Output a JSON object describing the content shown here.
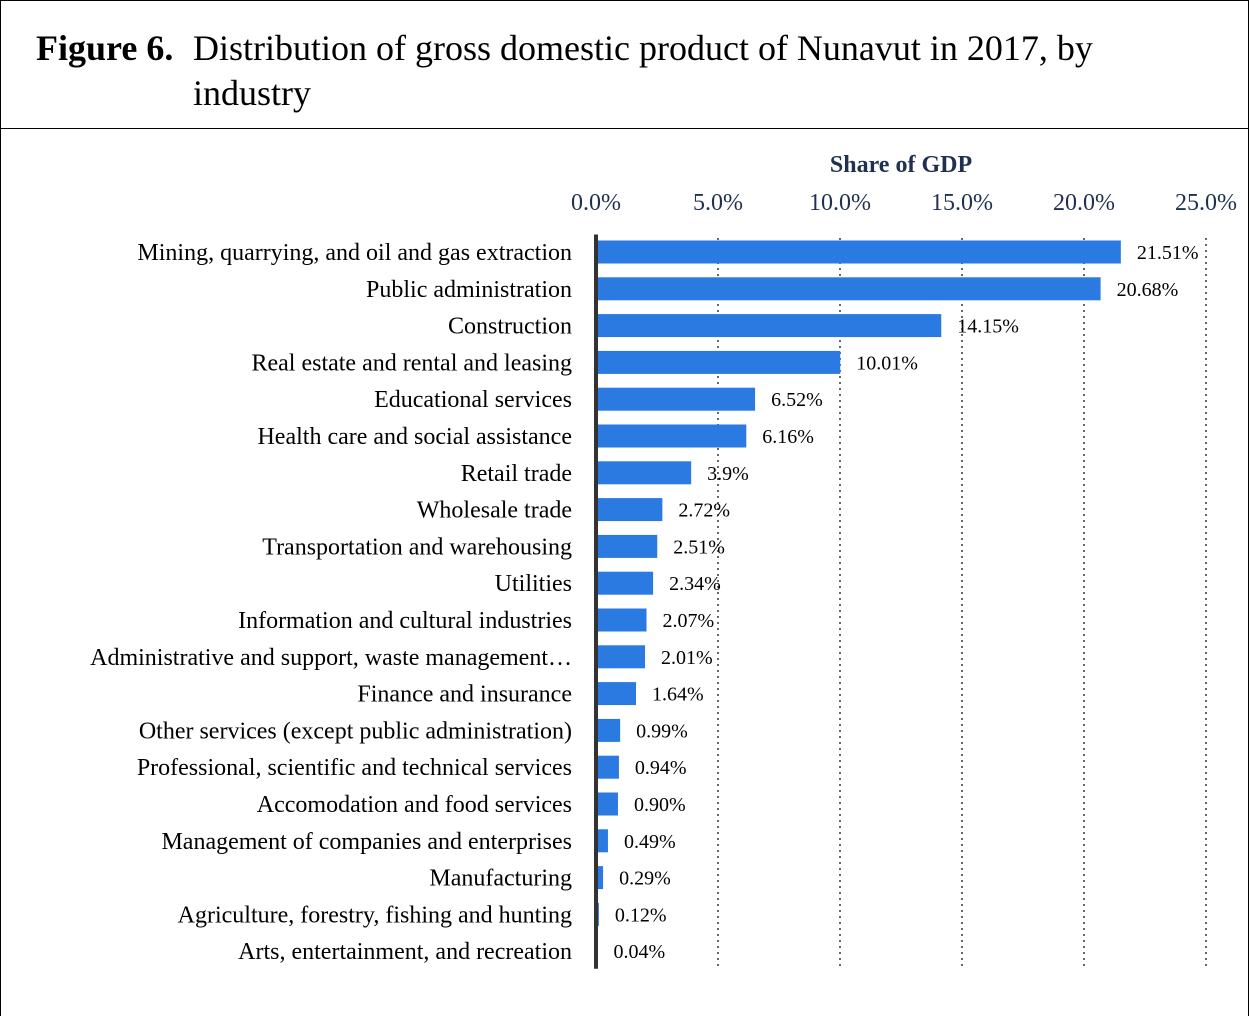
{
  "figure": {
    "label": "Figure 6.",
    "title": "Distribution of gross domestic product of Nunavut in 2017, by industry"
  },
  "chart_data": {
    "type": "bar",
    "orientation": "horizontal",
    "xlabel": "Share of GDP",
    "xlim": [
      0,
      25
    ],
    "x_ticks": [
      "0.0%",
      "5.0%",
      "10.0%",
      "15.0%",
      "20.0%",
      "25.0%"
    ],
    "grid": "vertical dotted",
    "bar_color": "#2a7ae2",
    "categories": [
      "Mining, quarrying, and oil and gas extraction",
      "Public administration",
      "Construction",
      "Real estate and rental and leasing",
      "Educational services",
      "Health care and social assistance",
      "Retail trade",
      "Wholesale trade",
      "Transportation and warehousing",
      "Utilities",
      "Information and cultural industries",
      "Administrative and support, waste management…",
      "Finance and insurance",
      "Other services (except public administration)",
      "Professional, scientific and technical services",
      "Accomodation and food services",
      "Management of companies and enterprises",
      "Manufacturing",
      "Agriculture, forestry, fishing and hunting",
      "Arts, entertainment, and recreation"
    ],
    "values": [
      21.51,
      20.68,
      14.15,
      10.01,
      6.52,
      6.16,
      3.9,
      2.72,
      2.51,
      2.34,
      2.07,
      2.01,
      1.64,
      0.99,
      0.94,
      0.9,
      0.49,
      0.29,
      0.12,
      0.04
    ],
    "data_labels": [
      "21.51%",
      "20.68%",
      "14.15%",
      "10.01%",
      "6.52%",
      "6.16%",
      "3.9%",
      "2.72%",
      "2.51%",
      "2.34%",
      "2.07%",
      "2.01%",
      "1.64%",
      "0.99%",
      "0.94%",
      "0.90%",
      "0.49%",
      "0.29%",
      "0.12%",
      "0.04%"
    ]
  }
}
